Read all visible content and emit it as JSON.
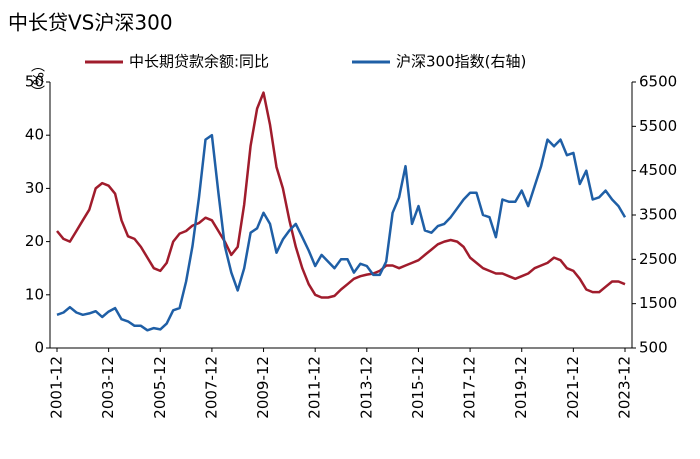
{
  "chart_data": {
    "type": "line",
    "title": "中长贷VS沪深300",
    "ylabel": "（%）",
    "x": [
      "2001-12",
      "2002-03",
      "2002-06",
      "2002-09",
      "2002-12",
      "2003-03",
      "2003-06",
      "2003-09",
      "2003-12",
      "2004-03",
      "2004-06",
      "2004-09",
      "2004-12",
      "2005-03",
      "2005-06",
      "2005-09",
      "2005-12",
      "2006-03",
      "2006-06",
      "2006-09",
      "2006-12",
      "2007-03",
      "2007-06",
      "2007-09",
      "2007-12",
      "2008-03",
      "2008-06",
      "2008-09",
      "2008-12",
      "2009-03",
      "2009-06",
      "2009-09",
      "2009-12",
      "2010-03",
      "2010-06",
      "2010-09",
      "2010-12",
      "2011-03",
      "2011-06",
      "2011-09",
      "2011-12",
      "2012-03",
      "2012-06",
      "2012-09",
      "2012-12",
      "2013-03",
      "2013-06",
      "2013-09",
      "2013-12",
      "2014-03",
      "2014-06",
      "2014-09",
      "2014-12",
      "2015-03",
      "2015-06",
      "2015-09",
      "2015-12",
      "2016-03",
      "2016-06",
      "2016-09",
      "2016-12",
      "2017-03",
      "2017-06",
      "2017-09",
      "2017-12",
      "2018-03",
      "2018-06",
      "2018-09",
      "2018-12",
      "2019-03",
      "2019-06",
      "2019-09",
      "2019-12",
      "2020-03",
      "2020-06",
      "2020-09",
      "2020-12",
      "2021-03",
      "2021-06",
      "2021-09",
      "2021-12",
      "2022-03",
      "2022-06",
      "2022-09",
      "2022-12",
      "2023-03",
      "2023-06",
      "2023-09",
      "2023-12"
    ],
    "xticks": [
      "2001-12",
      "2003-12",
      "2005-12",
      "2007-12",
      "2009-12",
      "2011-12",
      "2013-12",
      "2015-12",
      "2017-12",
      "2019-12",
      "2021-12",
      "2023-12"
    ],
    "series": [
      {
        "name": "中长期贷款余额:同比",
        "color": "#a01c2c",
        "values": [
          22,
          20.5,
          20,
          22,
          24,
          26,
          30,
          31,
          30.5,
          29,
          24,
          21,
          20.5,
          19,
          17,
          15,
          14.5,
          16,
          20,
          21.5,
          22,
          23,
          23.5,
          24.5,
          24,
          22,
          20,
          17.5,
          19,
          27,
          38,
          45,
          48,
          42,
          34,
          30,
          24,
          19,
          15,
          12,
          10,
          9.5,
          9.5,
          9.8,
          11,
          12,
          13,
          13.5,
          13.8,
          14,
          14.5,
          15.5,
          15.5,
          15,
          15.5,
          16,
          16.5,
          17.5,
          18.5,
          19.5,
          20,
          20.3,
          20,
          19,
          17,
          16,
          15,
          14.5,
          14,
          14,
          13.5,
          13,
          13.5,
          14,
          15,
          15.5,
          16,
          17,
          16.5,
          15,
          14.5,
          13,
          11,
          10.5,
          10.5,
          11.5,
          12.5,
          12.5,
          12
        ]
      },
      {
        "name": "沪深300指数(右轴)",
        "color": "#1f5fa6",
        "axis": "y2",
        "values": [
          1250,
          1300,
          1420,
          1300,
          1250,
          1280,
          1330,
          1200,
          1320,
          1400,
          1150,
          1100,
          1000,
          1000,
          900,
          950,
          920,
          1050,
          1350,
          1400,
          2000,
          2800,
          3900,
          5200,
          5300,
          4000,
          2800,
          2200,
          1800,
          2300,
          3100,
          3200,
          3550,
          3300,
          2650,
          2950,
          3150,
          3300,
          3000,
          2700,
          2350,
          2600,
          2450,
          2300,
          2500,
          2500,
          2200,
          2400,
          2350,
          2150,
          2150,
          2450,
          3550,
          3900,
          4600,
          3300,
          3700,
          3150,
          3100,
          3250,
          3300,
          3450,
          3650,
          3850,
          4000,
          4000,
          3500,
          3450,
          3000,
          3850,
          3800,
          3800,
          4050,
          3700,
          4150,
          4600,
          5200,
          5050,
          5200,
          4850,
          4900,
          4200,
          4500,
          3850,
          3900,
          4050,
          3850,
          3700,
          3450
        ]
      }
    ],
    "ylim": [
      0,
      50
    ],
    "yticks": [
      0,
      10,
      20,
      30,
      40,
      50
    ],
    "y2lim": [
      500,
      6500
    ],
    "y2ticks": [
      500,
      1500,
      2500,
      3500,
      4500,
      5500,
      6500
    ]
  }
}
